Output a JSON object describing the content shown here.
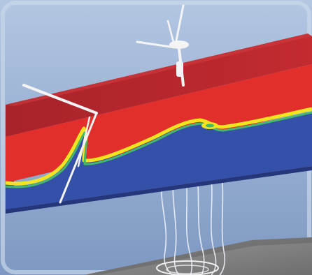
{
  "scene": {
    "type": "wind turbine wake simulation",
    "colors": {
      "sky_top": "#a9c0dc",
      "sky_bottom": "#7f9bc4",
      "panel_border": "#c9d7ea",
      "slab_top": "#b9262d",
      "slab_top_dark": "#9e1f25",
      "slab_front_red": "#e32f2b",
      "wake_blue": "#3550a8",
      "shear_yellow": "#f2e51f",
      "shear_green": "#45b86a",
      "side_face": "#2c3f8a",
      "ground": "#8e8e8e",
      "ground_dark": "#6d6d6d",
      "turbine": "#f4f4f4",
      "streamline": "#eef2f8"
    }
  }
}
